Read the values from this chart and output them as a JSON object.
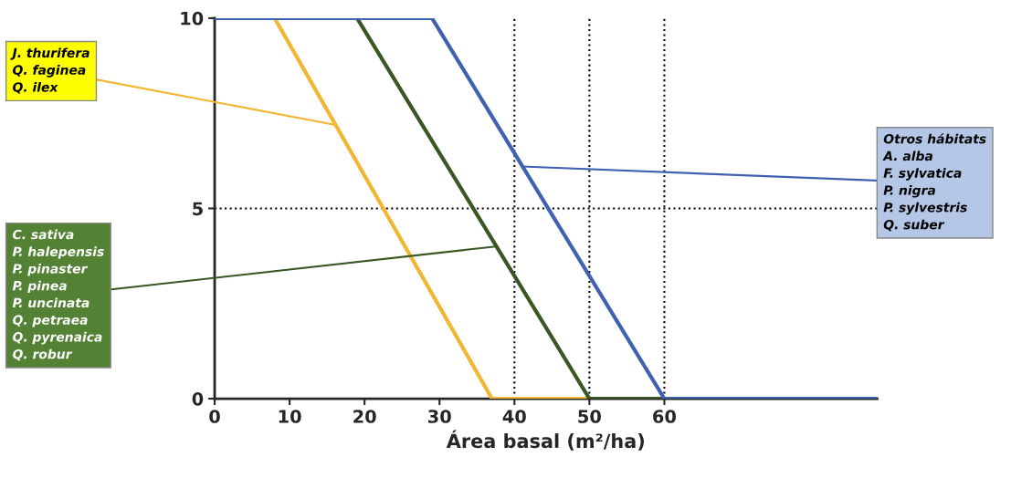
{
  "chart_data": {
    "type": "line",
    "xlabel": "Área basal (m²/ha)",
    "xlim": [
      0,
      88.4
    ],
    "ylim": [
      0,
      10
    ],
    "xticks": [
      0,
      10,
      20,
      30,
      40,
      50,
      60
    ],
    "yticks": [
      0,
      5,
      10
    ],
    "grid": false,
    "legend": false,
    "marker": "none",
    "line_style": "solid",
    "series": [
      {
        "color": "#f2b632",
        "x": [
          0,
          8,
          37,
          50
        ],
        "values": [
          10,
          10,
          0,
          0
        ]
      },
      {
        "color": "#385723",
        "x": [
          19,
          50,
          60
        ],
        "values": [
          10,
          0,
          0
        ]
      },
      {
        "color": "#4060b0",
        "x": [
          0,
          29,
          60,
          88.4
        ],
        "values": [
          10,
          10,
          0,
          0
        ]
      }
    ],
    "annotations": [
      {
        "text": "J. thurifera\nQ. faginea\nQ. ilex",
        "x": 16,
        "y": 7.2
      },
      {
        "text": "C. sativa\nP. halepensis\nP. pinaster\nP. pinea\nP. uncinata\nQ. petraea\nQ. pyrenaica\nQ. robur",
        "x": 37.5,
        "y": 4.0
      },
      {
        "text": "Otros hábitats\nA. alba\nF. sylvatica\nP. nigra\nP. sylvestris\nQ. suber",
        "x": 41,
        "y": 6.1
      }
    ],
    "ref_lines": [
      {
        "axis": "x",
        "value": 40,
        "line_style": "dotted",
        "color": "#000000"
      },
      {
        "axis": "x",
        "value": 50,
        "line_style": "dotted",
        "color": "#000000"
      },
      {
        "axis": "x",
        "value": 60,
        "line_style": "dotted",
        "color": "#000000"
      },
      {
        "axis": "y",
        "value": 5,
        "line_style": "dotted",
        "color": "#000000"
      }
    ]
  }
}
